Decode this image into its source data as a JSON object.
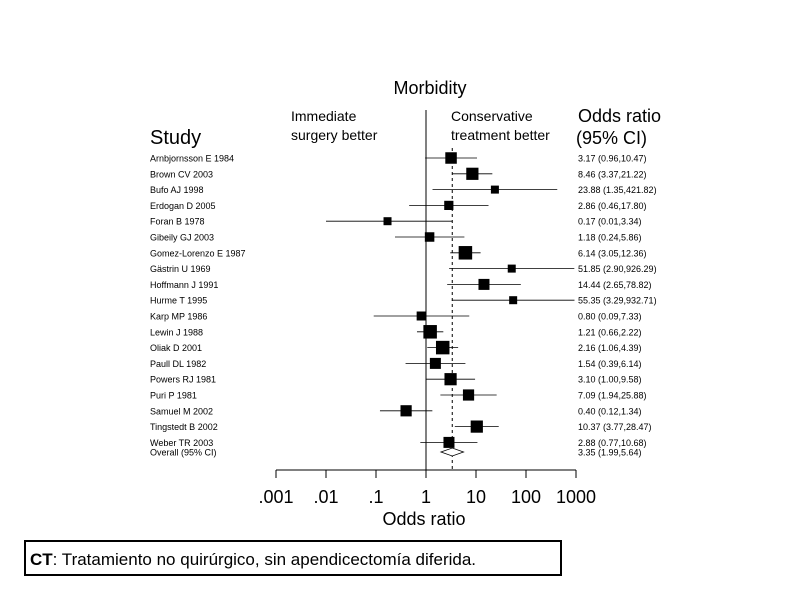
{
  "chart_data": {
    "type": "forest",
    "title": "Morbidity",
    "left_header": [
      "Immediate",
      "surgery better"
    ],
    "right_header": [
      "Conservative",
      "treatment  better"
    ],
    "study_header": "Study",
    "or_header": [
      "Odds ratio",
      "(95% CI)"
    ],
    "xlabel": "Odds ratio",
    "x_scale": "log",
    "xlim": [
      0.001,
      1000
    ],
    "x_ticks": [
      0.001,
      0.01,
      0.1,
      1,
      10,
      100,
      1000
    ],
    "x_tick_labels": [
      ".001",
      ".01",
      ".1",
      "1",
      "10",
      "100",
      "1000"
    ],
    "reference_line": 1,
    "overall_line": 3.35,
    "studies": [
      {
        "name": "Arnbjornsson E 1984",
        "or": 3.17,
        "low": 0.96,
        "high": 10.47,
        "label": "3.17 (0.96,10.47)",
        "weight": 0.65
      },
      {
        "name": "Brown CV 2003",
        "or": 8.46,
        "low": 3.37,
        "high": 21.22,
        "label": "8.46 (3.37,21.22)",
        "weight": 0.72
      },
      {
        "name": "Bufo AJ 1998",
        "or": 23.88,
        "low": 1.35,
        "high": 421.82,
        "label": "23.88 (1.35,421.82)",
        "weight": 0.3
      },
      {
        "name": "Erdogan D 2005",
        "or": 2.86,
        "low": 0.46,
        "high": 17.8,
        "label": "2.86 (0.46,17.80)",
        "weight": 0.42
      },
      {
        "name": "Foran B 1978",
        "or": 0.17,
        "low": 0.01,
        "high": 3.34,
        "label": "0.17 (0.01,3.34)",
        "weight": 0.3
      },
      {
        "name": "Gibeily GJ 2003",
        "or": 1.18,
        "low": 0.24,
        "high": 5.86,
        "label": "1.18 (0.24,5.86)",
        "weight": 0.45
      },
      {
        "name": "Gomez-Lorenzo E 1987",
        "or": 6.14,
        "low": 3.05,
        "high": 12.36,
        "label": "6.14 (3.05,12.36)",
        "weight": 0.85
      },
      {
        "name": "Gästrin U 1969",
        "or": 51.85,
        "low": 2.9,
        "high": 926.29,
        "label": "51.85 (2.90,926.29)",
        "weight": 0.3
      },
      {
        "name": "Hoffmann J 1991",
        "or": 14.44,
        "low": 2.65,
        "high": 78.82,
        "label": "14.44 (2.65,78.82)",
        "weight": 0.6
      },
      {
        "name": "Hurme T 1995",
        "or": 55.35,
        "low": 3.29,
        "high": 932.71,
        "label": "55.35 (3.29,932.71)",
        "weight": 0.3
      },
      {
        "name": "Karp MP 1986",
        "or": 0.8,
        "low": 0.09,
        "high": 7.33,
        "label": "0.80 (0.09,7.33)",
        "weight": 0.4
      },
      {
        "name": "Lewin J 1988",
        "or": 1.21,
        "low": 0.66,
        "high": 2.22,
        "label": "1.21 (0.66,2.22)",
        "weight": 0.85
      },
      {
        "name": "Oliak D 2001",
        "or": 2.16,
        "low": 1.06,
        "high": 4.39,
        "label": "2.16 (1.06,4.39)",
        "weight": 0.85
      },
      {
        "name": "Paull DL 1982",
        "or": 1.54,
        "low": 0.39,
        "high": 6.14,
        "label": "1.54 (0.39,6.14)",
        "weight": 0.6
      },
      {
        "name": "Powers RJ 1981",
        "or": 3.1,
        "low": 1.0,
        "high": 9.58,
        "label": "3.10 (1.00,9.58)",
        "weight": 0.72
      },
      {
        "name": "Puri P 1981",
        "or": 7.09,
        "low": 1.94,
        "high": 25.88,
        "label": "7.09 (1.94,25.88)",
        "weight": 0.62
      },
      {
        "name": "Samuel M 2002",
        "or": 0.4,
        "low": 0.12,
        "high": 1.34,
        "label": "0.40 (0.12,1.34)",
        "weight": 0.62
      },
      {
        "name": "Tingstedt B 2002",
        "or": 10.37,
        "low": 3.77,
        "high": 28.47,
        "label": "10.37 (3.77,28.47)",
        "weight": 0.72
      },
      {
        "name": "Weber TR 2003",
        "or": 2.88,
        "low": 0.77,
        "high": 10.68,
        "label": "2.88 (0.77,10.68)",
        "weight": 0.6
      }
    ],
    "overall": {
      "name": "Overall (95% CI)",
      "or": 3.35,
      "low": 1.99,
      "high": 5.64,
      "label": "3.35 (1.99,5.64)"
    }
  },
  "footnote": {
    "bold": "CT",
    "text": ": Tratamiento no quirúrgico, sin apendicectomía diferida."
  }
}
